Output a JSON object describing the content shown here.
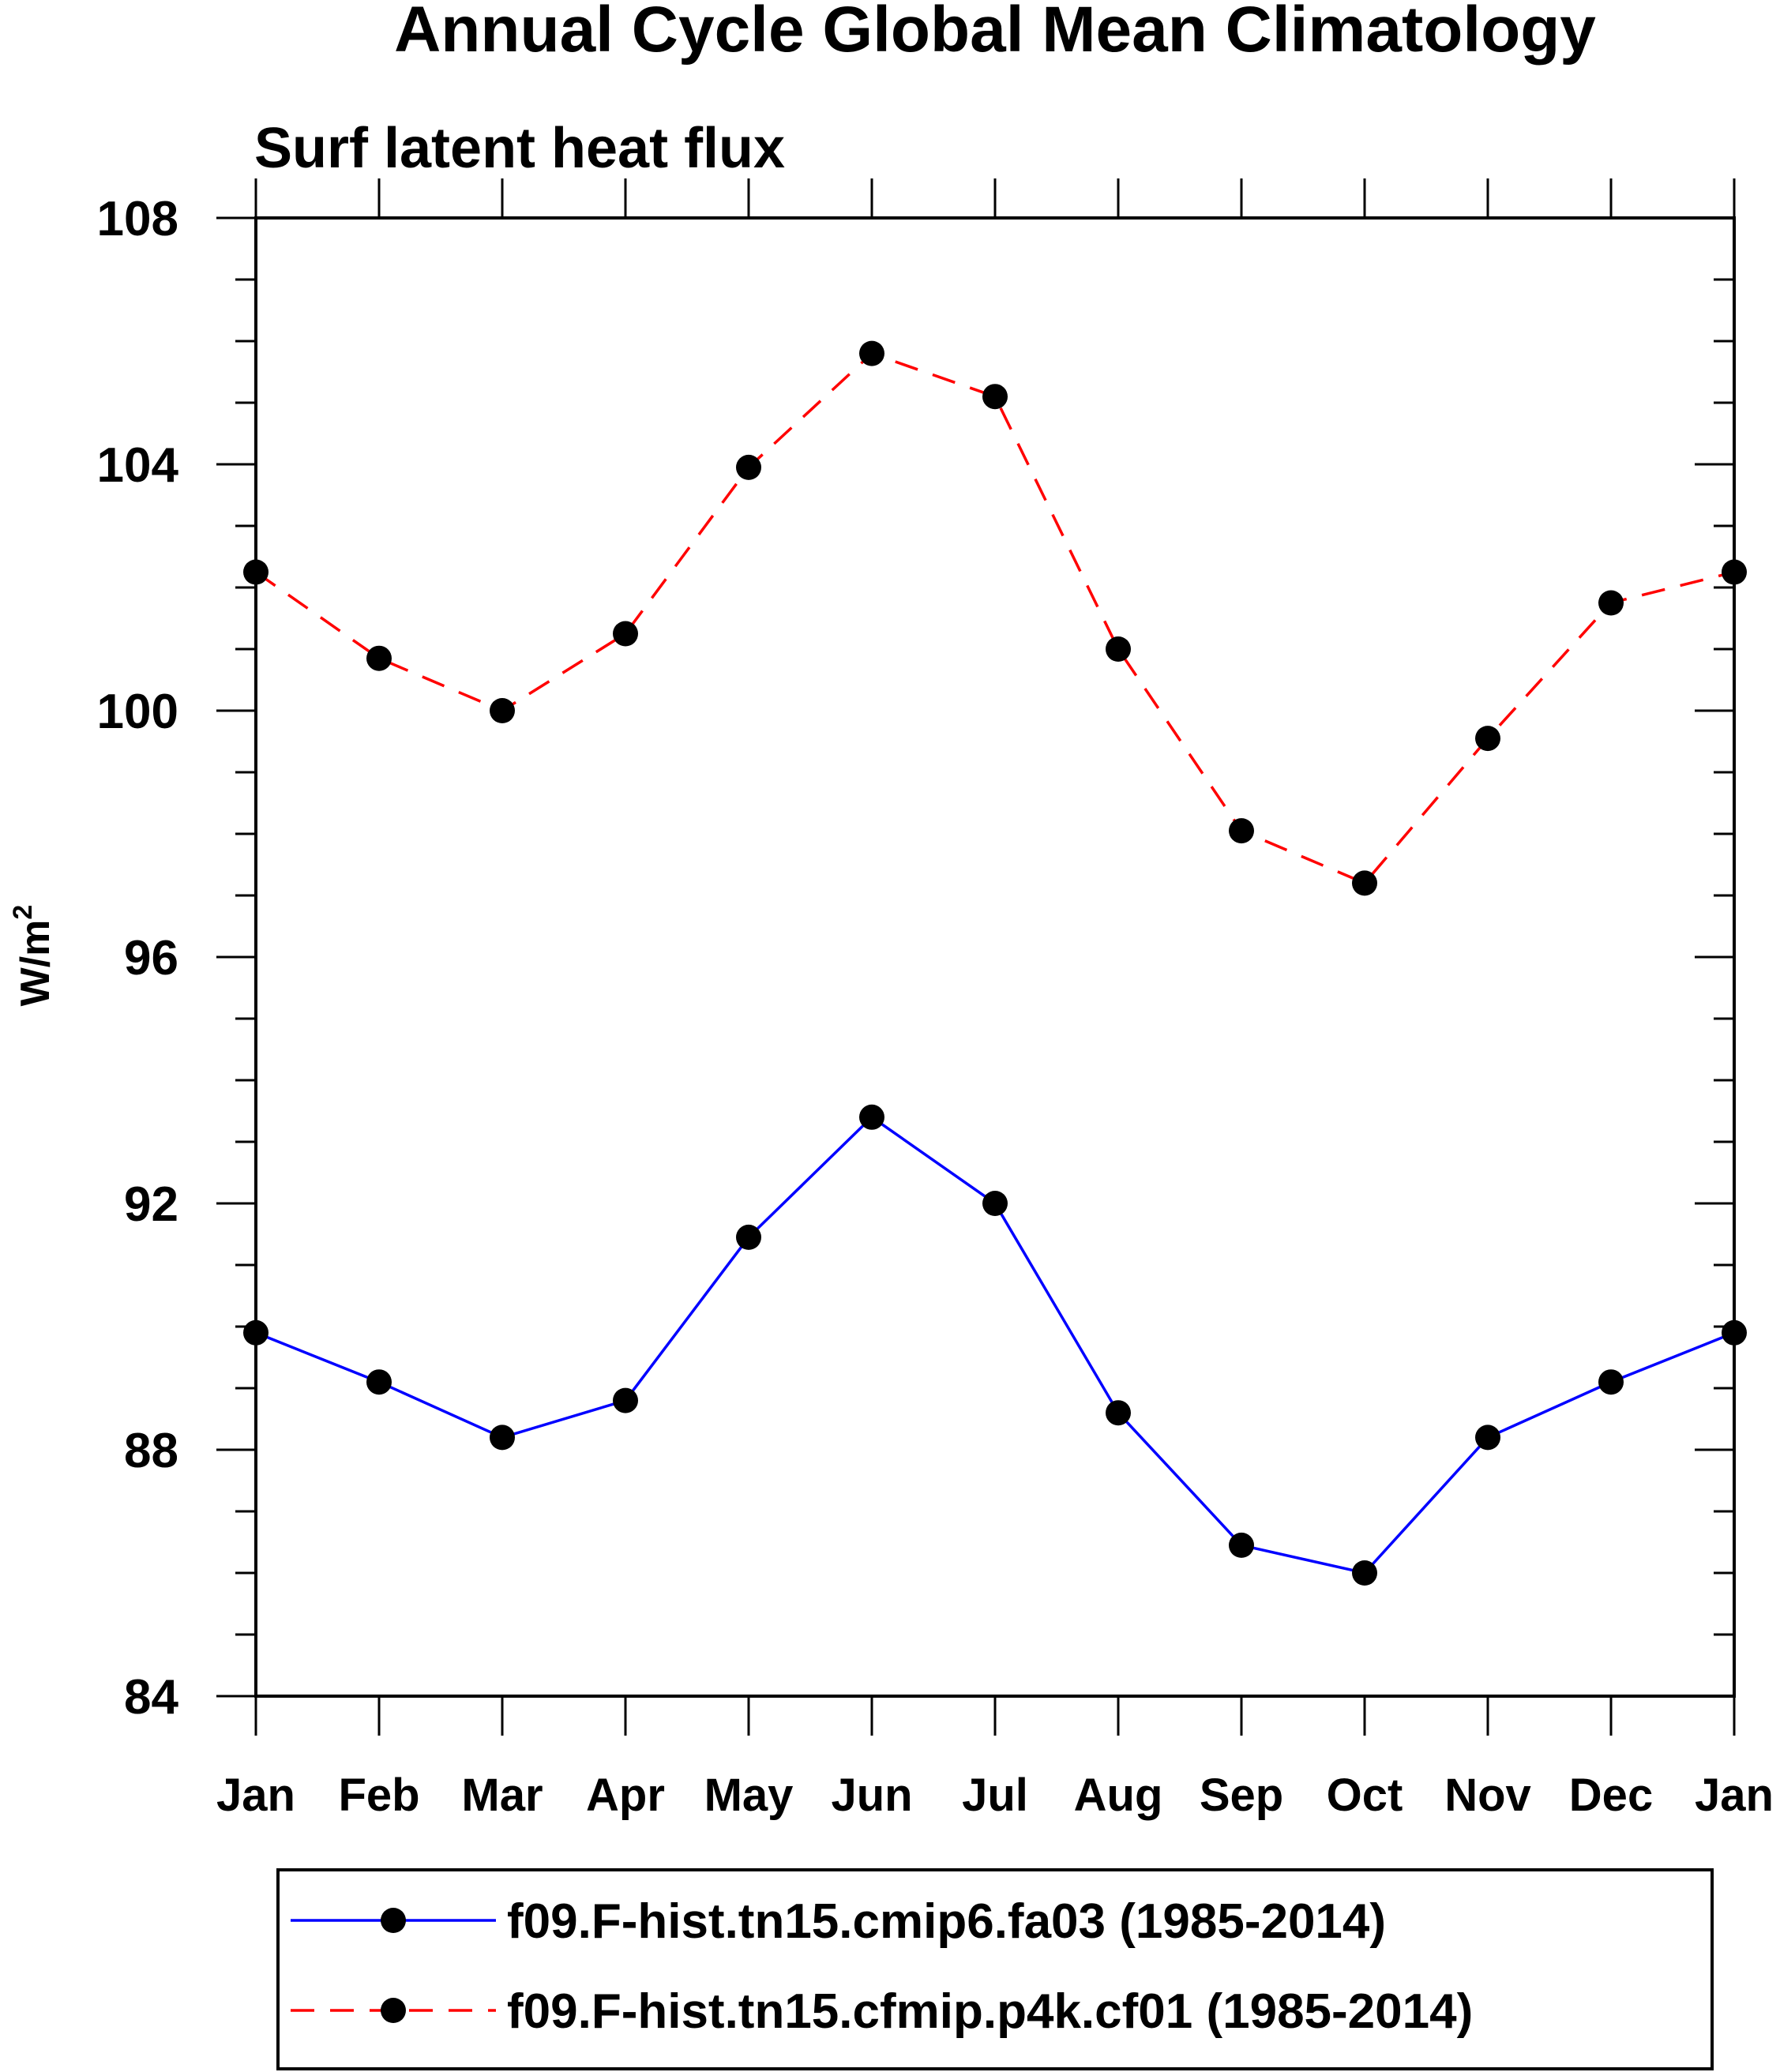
{
  "chart_data": {
    "type": "line",
    "title": "Annual Cycle Global Mean Climatology",
    "subtitle": "Surf latent heat flux",
    "ylabel_base": "W/m",
    "ylabel_sup": "2",
    "xlabel": "",
    "categories": [
      "Jan",
      "Feb",
      "Mar",
      "Apr",
      "May",
      "Jun",
      "Jul",
      "Aug",
      "Sep",
      "Oct",
      "Nov",
      "Dec",
      "Jan"
    ],
    "ylim": [
      84,
      108
    ],
    "yticks": [
      84,
      88,
      92,
      96,
      100,
      104,
      108
    ],
    "yticks_labels": [
      "84",
      "88",
      "92",
      "96",
      "100",
      "104",
      "108"
    ],
    "yminor_step": 1,
    "series": [
      {
        "name": "f09.F-hist.tn15.cmip6.fa03 (1985-2014)",
        "color": "#0000ff",
        "dash": "solid",
        "values": [
          89.9,
          89.1,
          88.2,
          88.8,
          91.45,
          93.4,
          92.0,
          88.6,
          86.45,
          86.0,
          88.2,
          89.1,
          89.9
        ]
      },
      {
        "name": "f09.F-hist.tn15.cfmip.p4k.cf01 (1985-2014)",
        "color": "#ff0000",
        "dash": "dashed",
        "values": [
          102.25,
          100.85,
          100.0,
          101.25,
          103.95,
          105.8,
          105.1,
          101.0,
          98.05,
          97.2,
          99.55,
          101.75,
          102.25
        ]
      }
    ],
    "legend_position": "bottom"
  }
}
